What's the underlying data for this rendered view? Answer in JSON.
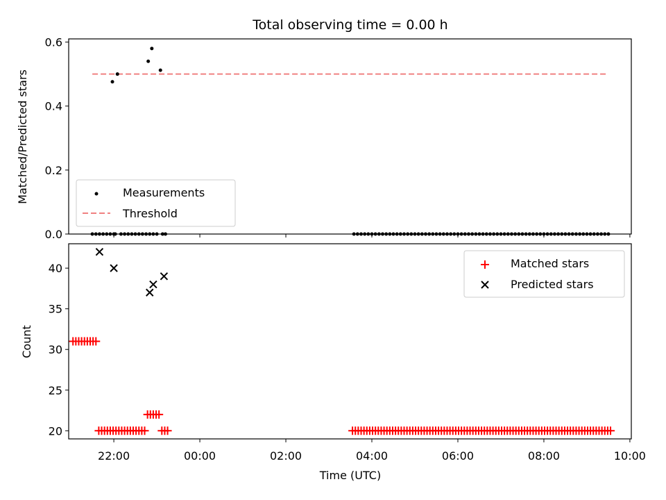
{
  "title": "Total observing time = 0.00 h",
  "colors": {
    "measurement": "#000000",
    "threshold": "#f08080",
    "matched": "#ff0000",
    "predicted": "#000000",
    "frame": "#000000",
    "legend_border": "#cccccc"
  },
  "chart_data": [
    {
      "type": "scatter",
      "ylabel": "Matched/Predicted stars",
      "ylim": [
        0,
        0.61
      ],
      "yticks": [
        0.0,
        0.2,
        0.4,
        0.6
      ],
      "ytick_labels": [
        "0.0",
        "0.2",
        "0.4",
        "0.6"
      ],
      "xlim": [
        "20:57",
        "10:02"
      ],
      "legend": {
        "placement": "lower-left",
        "entries": [
          "Measurements",
          "Threshold"
        ]
      },
      "threshold": {
        "name": "Threshold",
        "y": 0.5,
        "x_start": "21:30",
        "x_end": "09:30"
      },
      "series": [
        {
          "name": "Measurements",
          "x": [
            "21:30",
            "21:35",
            "21:40",
            "21:45",
            "21:50",
            "21:55",
            "21:58",
            "22:00",
            "22:02",
            "22:05",
            "22:10",
            "22:15",
            "22:20",
            "22:25",
            "22:30",
            "22:35",
            "22:40",
            "22:45",
            "22:48",
            "22:50",
            "22:53",
            "22:55",
            "23:00",
            "23:05",
            "23:08",
            "23:12",
            "03:35",
            "03:40",
            "03:45",
            "03:50",
            "03:55",
            "04:00",
            "04:05",
            "04:10",
            "04:15",
            "04:20",
            "04:25",
            "04:30",
            "04:35",
            "04:40",
            "04:45",
            "04:50",
            "04:55",
            "05:00",
            "05:05",
            "05:10",
            "05:15",
            "05:20",
            "05:25",
            "05:30",
            "05:35",
            "05:40",
            "05:45",
            "05:50",
            "05:55",
            "06:00",
            "06:05",
            "06:10",
            "06:15",
            "06:20",
            "06:25",
            "06:30",
            "06:35",
            "06:40",
            "06:45",
            "06:50",
            "06:55",
            "07:00",
            "07:05",
            "07:10",
            "07:15",
            "07:20",
            "07:25",
            "07:30",
            "07:35",
            "07:40",
            "07:45",
            "07:50",
            "07:55",
            "08:00",
            "08:05",
            "08:10",
            "08:15",
            "08:20",
            "08:25",
            "08:30",
            "08:35",
            "08:40",
            "08:45",
            "08:50",
            "08:55",
            "09:00",
            "09:05",
            "09:10",
            "09:15",
            "09:20",
            "09:25",
            "09:30"
          ],
          "y": [
            0,
            0,
            0,
            0,
            0,
            0,
            0.476,
            0,
            0,
            0.5,
            0,
            0,
            0,
            0,
            0,
            0,
            0,
            0,
            0.54,
            0,
            0.58,
            0,
            0,
            0.512,
            0,
            0,
            0,
            0,
            0,
            0,
            0,
            0,
            0,
            0,
            0,
            0,
            0,
            0,
            0,
            0,
            0,
            0,
            0,
            0,
            0,
            0,
            0,
            0,
            0,
            0,
            0,
            0,
            0,
            0,
            0,
            0,
            0,
            0,
            0,
            0,
            0,
            0,
            0,
            0,
            0,
            0,
            0,
            0,
            0,
            0,
            0,
            0,
            0,
            0,
            0,
            0,
            0,
            0,
            0,
            0,
            0,
            0,
            0,
            0,
            0,
            0,
            0,
            0,
            0,
            0,
            0,
            0,
            0,
            0,
            0,
            0,
            0,
            0
          ]
        }
      ]
    },
    {
      "type": "scatter",
      "ylabel": "Count",
      "xlabel": "Time (UTC)",
      "ylim": [
        19,
        43
      ],
      "yticks": [
        20,
        25,
        30,
        35,
        40
      ],
      "ytick_labels": [
        "20",
        "25",
        "30",
        "35",
        "40"
      ],
      "xlim": [
        "20:57",
        "10:02"
      ],
      "xticks": [
        "22:00",
        "00:00",
        "02:00",
        "04:00",
        "06:00",
        "08:00",
        "10:00"
      ],
      "xtick_labels": [
        "22:00",
        "00:00",
        "02:00",
        "04:00",
        "06:00",
        "08:00",
        "10:00"
      ],
      "legend": {
        "placement": "upper-right",
        "entries": [
          "Matched stars",
          "Predicted stars"
        ]
      },
      "series": [
        {
          "name": "Matched stars",
          "marker": "plus",
          "x": [
            "21:03",
            "21:07",
            "21:11",
            "21:15",
            "21:19",
            "21:23",
            "21:27",
            "21:31",
            "21:35",
            "21:39",
            "21:43",
            "21:47",
            "21:51",
            "21:55",
            "21:59",
            "22:03",
            "22:07",
            "22:11",
            "22:15",
            "22:19",
            "22:23",
            "22:27",
            "22:31",
            "22:35",
            "22:39",
            "22:43",
            "22:47",
            "22:51",
            "22:55",
            "22:59",
            "23:03",
            "23:07",
            "23:11",
            "23:15",
            "03:33",
            "03:37",
            "03:41",
            "03:45",
            "03:49",
            "03:53",
            "03:57",
            "04:01",
            "04:05",
            "04:09",
            "04:13",
            "04:17",
            "04:21",
            "04:25",
            "04:29",
            "04:33",
            "04:37",
            "04:41",
            "04:45",
            "04:49",
            "04:53",
            "04:57",
            "05:01",
            "05:05",
            "05:09",
            "05:13",
            "05:17",
            "05:21",
            "05:25",
            "05:29",
            "05:33",
            "05:37",
            "05:41",
            "05:45",
            "05:49",
            "05:53",
            "05:57",
            "06:01",
            "06:05",
            "06:09",
            "06:13",
            "06:17",
            "06:21",
            "06:25",
            "06:29",
            "06:33",
            "06:37",
            "06:41",
            "06:45",
            "06:49",
            "06:53",
            "06:57",
            "07:01",
            "07:05",
            "07:09",
            "07:13",
            "07:17",
            "07:21",
            "07:25",
            "07:29",
            "07:33",
            "07:37",
            "07:41",
            "07:45",
            "07:49",
            "07:53",
            "07:57",
            "08:01",
            "08:05",
            "08:09",
            "08:13",
            "08:17",
            "08:21",
            "08:25",
            "08:29",
            "08:33",
            "08:37",
            "08:41",
            "08:45",
            "08:49",
            "08:53",
            "08:57",
            "09:01",
            "09:05",
            "09:09",
            "09:13",
            "09:17",
            "09:21",
            "09:25",
            "09:29",
            "09:33"
          ],
          "y": [
            31,
            31,
            31,
            31,
            31,
            31,
            31,
            31,
            31,
            20,
            20,
            20,
            20,
            20,
            20,
            20,
            20,
            20,
            20,
            20,
            20,
            20,
            20,
            20,
            20,
            20,
            22,
            22,
            22,
            22,
            22,
            20,
            20,
            20,
            20,
            20,
            20,
            20,
            20,
            20,
            20,
            20,
            20,
            20,
            20,
            20,
            20,
            20,
            20,
            20,
            20,
            20,
            20,
            20,
            20,
            20,
            20,
            20,
            20,
            20,
            20,
            20,
            20,
            20,
            20,
            20,
            20,
            20,
            20,
            20,
            20,
            20,
            20,
            20,
            20,
            20,
            20,
            20,
            20,
            20,
            20,
            20,
            20,
            20,
            20,
            20,
            20,
            20,
            20,
            20,
            20,
            20,
            20,
            20,
            20,
            20,
            20,
            20,
            20,
            20,
            20,
            20,
            20,
            20,
            20,
            20,
            20,
            20,
            20,
            20,
            20,
            20,
            20,
            20,
            20,
            20,
            20,
            20,
            20,
            20,
            20,
            20,
            20,
            20,
            20
          ]
        },
        {
          "name": "Predicted stars",
          "marker": "x",
          "x": [
            "21:40",
            "22:00",
            "22:50",
            "22:55",
            "23:10"
          ],
          "y": [
            42,
            40,
            37,
            38,
            39
          ]
        }
      ]
    }
  ]
}
